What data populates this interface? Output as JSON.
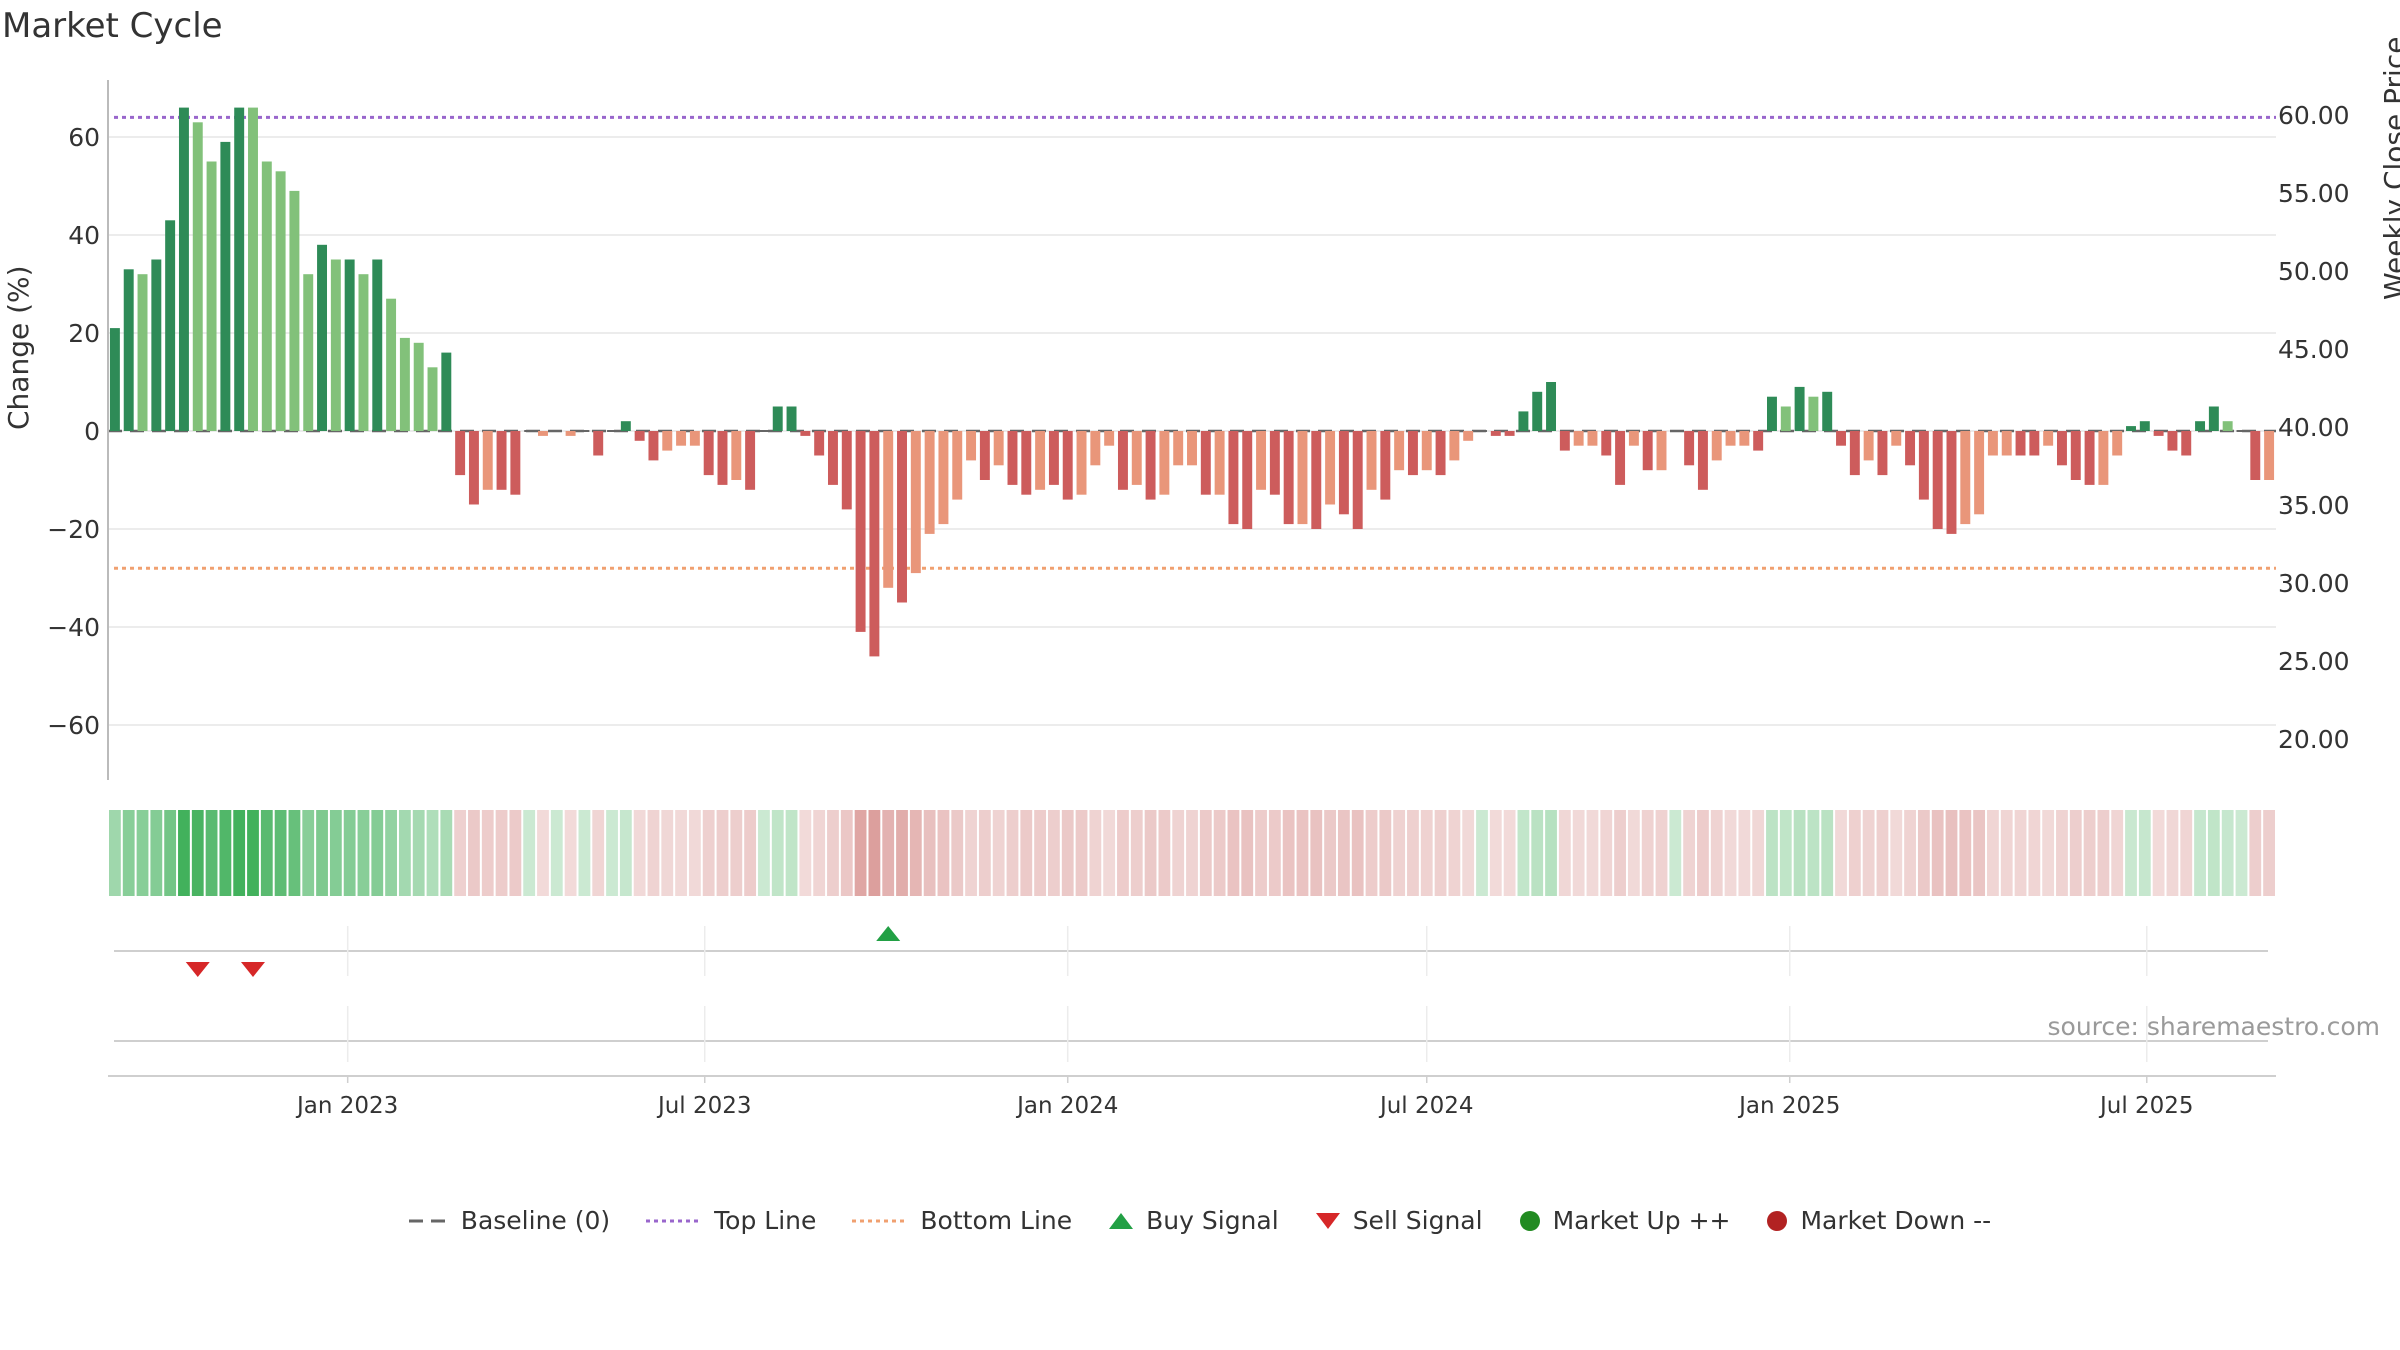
{
  "title": "Market Cycle",
  "source": "source: sharemaestro.com",
  "colors": {
    "up_strong": "#2e8b57",
    "up_light": "#82c17a",
    "down_strong": "#cd5c5c",
    "down_light": "#e9967a",
    "top_line": "#9966cc",
    "bottom_line": "#f0a070",
    "buy": "#22a045",
    "sell": "#d62728",
    "market_up": "#228b22",
    "market_down": "#b22222",
    "grid": "#e6e6e6"
  },
  "legend": [
    {
      "label": "Baseline (0)",
      "icon": "dash-line-icon"
    },
    {
      "label": "Top Line",
      "icon": "dotted-purple-line-icon"
    },
    {
      "label": "Bottom Line",
      "icon": "dotted-orange-line-icon"
    },
    {
      "label": "Buy Signal",
      "icon": "triangle-up-icon"
    },
    {
      "label": "Sell Signal",
      "icon": "triangle-down-icon"
    },
    {
      "label": "Market Up ++",
      "icon": "green-dot-icon"
    },
    {
      "label": "Market Down --",
      "icon": "red-dot-icon"
    }
  ],
  "chart_data": {
    "type": "bar",
    "title": "Market Cycle",
    "ylabel": "Change (%)",
    "y2label": "Weekly Close Price",
    "ylim": [
      -71,
      72
    ],
    "yticks": [
      60,
      40,
      20,
      0,
      -20,
      -40,
      -60
    ],
    "ytick_labels": [
      "60",
      "40",
      "20",
      "0",
      "−20",
      "−40",
      "−60"
    ],
    "y2ticks": [
      "60.00",
      "55.00",
      "50.00",
      "45.00",
      "40.00",
      "35.00",
      "30.00",
      "25.00",
      "20.00"
    ],
    "top_line": 64,
    "bottom_line": -28,
    "x_start": "2022-09-05",
    "weeks": 157,
    "x_ticks": [
      {
        "label": "Jan 2023",
        "date": "2023-01-01"
      },
      {
        "label": "Jul 2023",
        "date": "2023-07-01"
      },
      {
        "label": "Jan 2024",
        "date": "2024-01-01"
      },
      {
        "label": "Jul 2024",
        "date": "2024-07-01"
      },
      {
        "label": "Jan 2025",
        "date": "2025-01-01"
      },
      {
        "label": "Jul 2025",
        "date": "2025-07-01"
      }
    ],
    "values": [
      21,
      33,
      32,
      35,
      43,
      66,
      63,
      55,
      59,
      66,
      66,
      55,
      53,
      49,
      32,
      38,
      35,
      35,
      32,
      35,
      27,
      19,
      18,
      13,
      16,
      -9,
      -15,
      -12,
      -12,
      -13,
      0,
      -1,
      0,
      -1,
      0,
      -5,
      0,
      2,
      -2,
      -6,
      -4,
      -3,
      -3,
      -9,
      -11,
      -10,
      -12,
      0,
      5,
      5,
      -1,
      -5,
      -11,
      -16,
      -41,
      -46,
      -32,
      -35,
      -29,
      -21,
      -19,
      -14,
      -6,
      -10,
      -7,
      -11,
      -13,
      -12,
      -11,
      -14,
      -13,
      -7,
      -3,
      -12,
      -11,
      -14,
      -13,
      -7,
      -7,
      -13,
      -13,
      -19,
      -20,
      -12,
      -13,
      -19,
      -19,
      -20,
      -15,
      -17,
      -20,
      -12,
      -14,
      -8,
      -9,
      -8,
      -9,
      -6,
      -2,
      0,
      -1,
      -1,
      4,
      8,
      10,
      -4,
      -3,
      -3,
      -5,
      -11,
      -3,
      -8,
      -8,
      0,
      -7,
      -12,
      -6,
      -3,
      -3,
      -4,
      7,
      5,
      9,
      7,
      8,
      -3,
      -9,
      -6,
      -9,
      -3,
      -7,
      -14,
      -20,
      -21,
      -19,
      -17,
      -5,
      -5,
      -5,
      -5,
      -3,
      -7,
      -10,
      -11,
      -11,
      -5,
      1,
      2,
      -1,
      -4,
      -5,
      2,
      5,
      2,
      0,
      -10,
      -10
    ],
    "strength": [
      1,
      1,
      0,
      1,
      1,
      1,
      0,
      0,
      1,
      1,
      0,
      0,
      0,
      0,
      0,
      1,
      0,
      1,
      0,
      1,
      0,
      0,
      0,
      0,
      1,
      1,
      1,
      0,
      1,
      1,
      0,
      0,
      0,
      0,
      0,
      1,
      0,
      1,
      1,
      1,
      0,
      0,
      0,
      1,
      1,
      0,
      1,
      0,
      1,
      1,
      1,
      1,
      1,
      1,
      1,
      1,
      0,
      1,
      0,
      0,
      0,
      0,
      0,
      1,
      0,
      1,
      1,
      0,
      1,
      1,
      0,
      0,
      0,
      1,
      0,
      1,
      0,
      0,
      0,
      1,
      0,
      1,
      1,
      0,
      1,
      1,
      0,
      1,
      0,
      1,
      1,
      0,
      1,
      0,
      1,
      0,
      1,
      0,
      0,
      0,
      1,
      1,
      1,
      1,
      1,
      1,
      0,
      0,
      1,
      1,
      0,
      1,
      0,
      0,
      1,
      1,
      0,
      0,
      0,
      1,
      1,
      0,
      1,
      0,
      1,
      1,
      1,
      0,
      1,
      0,
      1,
      1,
      1,
      1,
      0,
      0,
      0,
      0,
      1,
      1,
      0,
      1,
      1,
      1,
      0,
      0,
      1,
      1,
      1,
      1,
      1,
      1,
      1,
      0,
      0,
      1,
      0
    ],
    "signals": [
      {
        "type": "sell",
        "week": 6
      },
      {
        "type": "sell",
        "week": 10
      },
      {
        "type": "buy",
        "week": 56
      }
    ]
  }
}
